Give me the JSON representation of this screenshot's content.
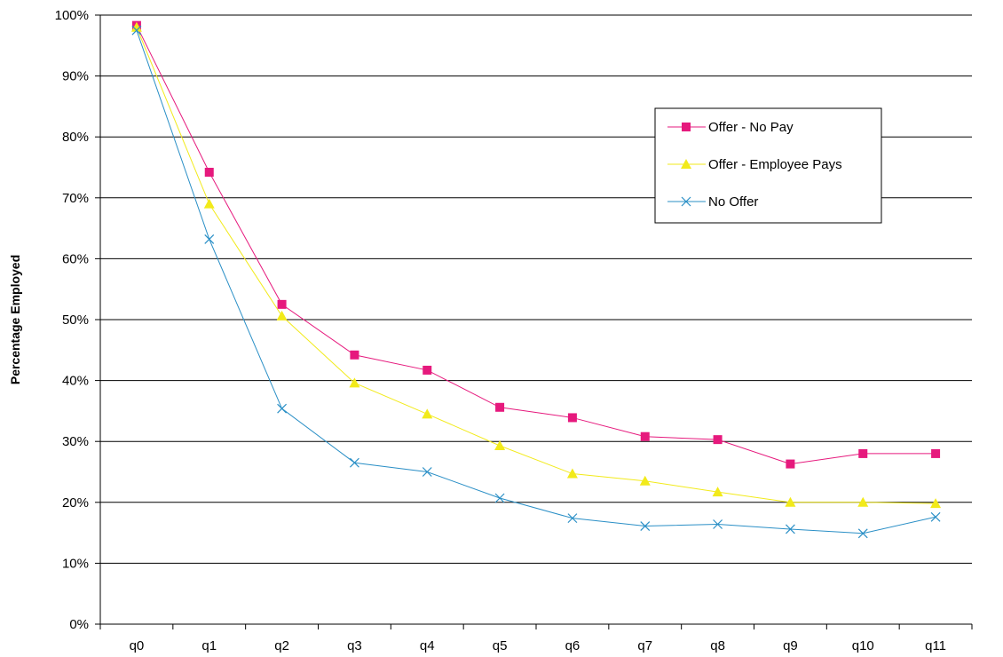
{
  "chart_data": {
    "type": "line",
    "title": "",
    "xlabel": "",
    "ylabel": "Percentage Employed",
    "categories": [
      "q0",
      "q1",
      "q2",
      "q3",
      "q4",
      "q5",
      "q6",
      "q7",
      "q8",
      "q9",
      "q10",
      "q11"
    ],
    "ylim": [
      0,
      100
    ],
    "yticks": [
      0,
      10,
      20,
      30,
      40,
      50,
      60,
      70,
      80,
      90,
      100
    ],
    "ytick_labels": [
      "0%",
      "10%",
      "20%",
      "30%",
      "40%",
      "50%",
      "60%",
      "70%",
      "80%",
      "90%",
      "100%"
    ],
    "grid": "horizontal",
    "legend_position": "upper-right",
    "series": [
      {
        "name": "Offer - No Pay",
        "color": "#e6197d",
        "marker": "square",
        "values": [
          98.3,
          74.2,
          52.5,
          44.2,
          41.7,
          35.6,
          33.9,
          30.8,
          30.3,
          26.3,
          28.0,
          28.0
        ]
      },
      {
        "name": "Offer - Employee Pays",
        "color": "#f2ea1a",
        "marker": "triangle",
        "values": [
          98.0,
          69.0,
          50.6,
          39.6,
          34.5,
          29.3,
          24.7,
          23.5,
          21.7,
          20.0,
          20.0,
          19.8
        ]
      },
      {
        "name": "No Offer",
        "color": "#2a8fc6",
        "marker": "x",
        "values": [
          97.5,
          63.2,
          35.4,
          26.5,
          25.0,
          20.7,
          17.4,
          16.1,
          16.4,
          15.6,
          14.9,
          17.6
        ]
      }
    ]
  }
}
